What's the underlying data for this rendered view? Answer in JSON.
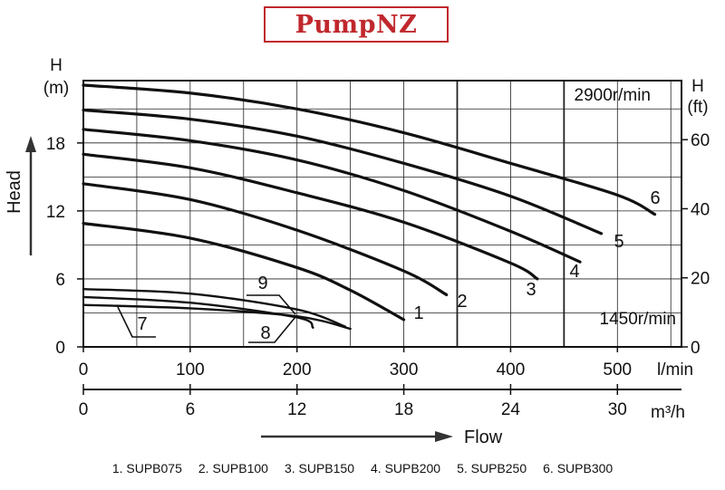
{
  "logo": "PumpNZ",
  "legend": [
    "1. SUPB075",
    "2. SUPB100",
    "3. SUPB150",
    "4. SUPB200",
    "5. SUPB250",
    "6. SUPB300"
  ],
  "chart_data": {
    "type": "line",
    "title": "",
    "speed_labels": [
      "2900r/min",
      "1450r/min"
    ],
    "left_axis": {
      "label": "Head",
      "unit_top": "H",
      "unit_bottom": "(m)",
      "ticks": [
        0,
        6,
        12,
        18
      ],
      "range": [
        0,
        23.5
      ]
    },
    "right_axis": {
      "unit_top": "H",
      "unit_bottom": "(ft)",
      "ticks": [
        0,
        20,
        40,
        60
      ],
      "range": [
        0,
        77.1
      ]
    },
    "x_axis": {
      "unit": "l/min",
      "ticks": [
        0,
        100,
        200,
        300,
        400,
        500
      ],
      "range": [
        0,
        560
      ]
    },
    "x_axis_2": {
      "unit": "m³/h",
      "ticks": [
        0,
        6,
        12,
        18,
        24,
        30
      ],
      "range": [
        0,
        33.6
      ]
    },
    "xlabel": "Flow",
    "series": [
      {
        "name": "1",
        "speed": "2900r/min",
        "x": [
          0,
          100,
          200,
          250,
          300
        ],
        "y": [
          10.9,
          9.6,
          7.0,
          5.0,
          2.4
        ]
      },
      {
        "name": "2",
        "speed": "2900r/min",
        "x": [
          0,
          100,
          200,
          300,
          340
        ],
        "y": [
          14.4,
          13.0,
          10.3,
          6.7,
          4.6
        ]
      },
      {
        "name": "3",
        "speed": "2900r/min",
        "x": [
          0,
          100,
          200,
          300,
          400,
          425
        ],
        "y": [
          17.0,
          15.8,
          13.6,
          11.0,
          7.4,
          6.0
        ]
      },
      {
        "name": "4",
        "speed": "2900r/min",
        "x": [
          0,
          100,
          200,
          300,
          400,
          465
        ],
        "y": [
          19.2,
          18.2,
          16.5,
          13.8,
          10.2,
          7.5
        ]
      },
      {
        "name": "5",
        "speed": "2900r/min",
        "x": [
          0,
          100,
          200,
          300,
          400,
          485
        ],
        "y": [
          20.9,
          20.1,
          18.6,
          16.2,
          13.3,
          10.0
        ]
      },
      {
        "name": "6",
        "speed": "2900r/min",
        "x": [
          0,
          100,
          200,
          300,
          400,
          500,
          535
        ],
        "y": [
          23.1,
          22.4,
          21.0,
          18.9,
          16.2,
          13.4,
          11.7
        ]
      },
      {
        "name": "7",
        "speed": "1450r/min",
        "x": [
          0,
          100,
          200,
          250
        ],
        "y": [
          3.7,
          3.4,
          2.7,
          1.6
        ]
      },
      {
        "name": "8",
        "speed": "1450r/min",
        "x": [
          0,
          100,
          200,
          215
        ],
        "y": [
          4.4,
          3.9,
          2.6,
          1.7
        ]
      },
      {
        "name": "9",
        "speed": "1450r/min",
        "x": [
          0,
          100,
          200,
          245
        ],
        "y": [
          5.1,
          4.7,
          3.3,
          1.8
        ]
      }
    ]
  }
}
